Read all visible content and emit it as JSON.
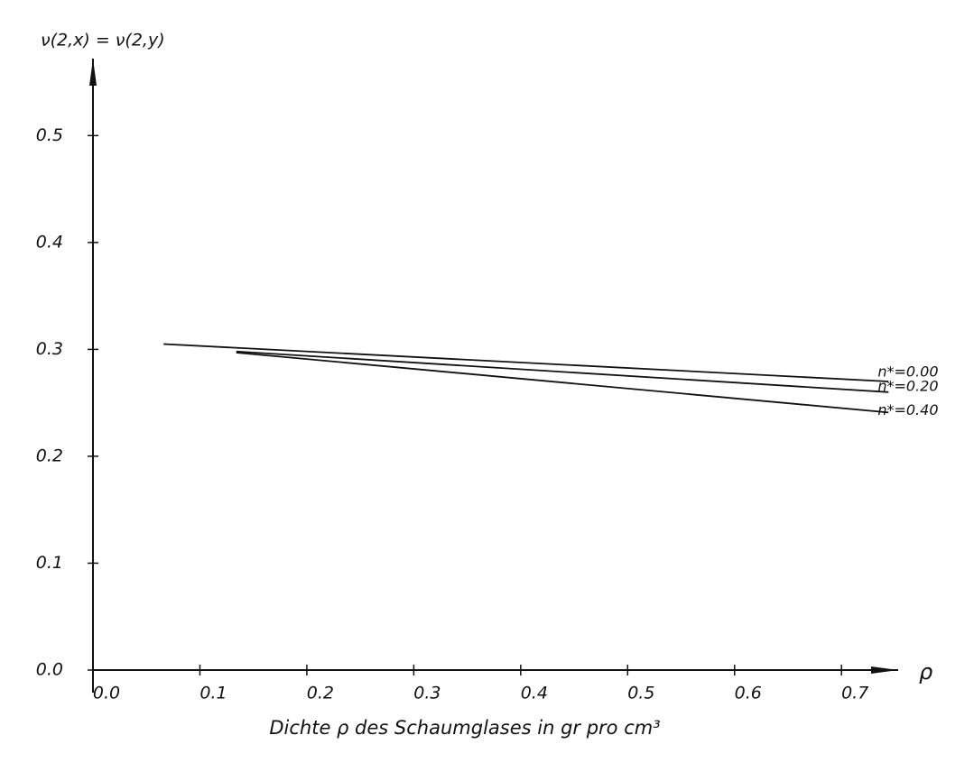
{
  "chart_data": {
    "type": "line",
    "y_label": "ν(2,x) = ν(2,y)",
    "x_label": "Dichte ρ des Schaumglases in gr pro cm³",
    "x_symbol": "ρ",
    "xlim": [
      0,
      0.753
    ],
    "ylim": [
      0,
      0.572
    ],
    "xticks": [
      {
        "value": 0,
        "label": "0.0"
      },
      0.1,
      0.2,
      0.3,
      0.4,
      0.5,
      0.6,
      0.7
    ],
    "yticks": [
      {
        "value": 0,
        "label": "0.0"
      },
      0.1,
      0.2,
      0.3,
      0.4,
      0.5
    ],
    "color": "#111111",
    "series": [
      {
        "name": "n*=0.00",
        "x": [
          0.066,
          0.744
        ],
        "values": [
          0.305,
          0.27
        ]
      },
      {
        "name": "n*=0.20",
        "x": [
          0.134,
          0.744
        ],
        "values": [
          0.298,
          0.26
        ]
      },
      {
        "name": "n*=0.40",
        "x": [
          0.134,
          0.744
        ],
        "values": [
          0.297,
          0.241
        ]
      }
    ]
  }
}
